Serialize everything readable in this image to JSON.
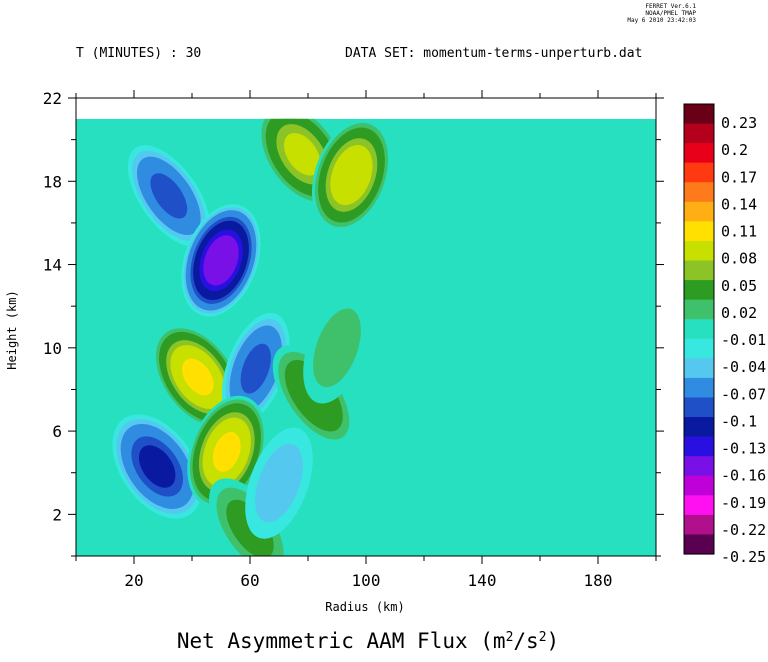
{
  "header": {
    "time_label": "T (MINUTES) : 30",
    "dataset_label": "DATA SET: momentum-terms-unperturb.dat",
    "stamp_line1": "FERRET  Ver.6.1",
    "stamp_line2": "NOAA/PMEL TMAP",
    "stamp_line3": "May  6 2010 23:42:03"
  },
  "chart_data": {
    "type": "heatmap",
    "title": "Net Asymmetric AAM Flux (m²/s²)",
    "xlabel": "Radius (km)",
    "ylabel": "Height (km)",
    "xlim": [
      0,
      200
    ],
    "ylim": [
      0,
      22
    ],
    "data_top": 21,
    "x_ticks": [
      20,
      60,
      100,
      140,
      180
    ],
    "y_ticks": [
      2,
      6,
      10,
      14,
      18,
      22
    ],
    "colorbar": {
      "levels": [
        "0.23",
        "0.2",
        "0.17",
        "0.14",
        "0.11",
        "0.08",
        "0.05",
        "0.02",
        "-0.01",
        "-0.04",
        "-0.07",
        "-0.1",
        "-0.13",
        "-0.16",
        "-0.19",
        "-0.22",
        "-0.25"
      ],
      "colors": [
        "#6a0018",
        "#b4001c",
        "#e8001a",
        "#ff3a10",
        "#ff7a1a",
        "#ffae14",
        "#ffe000",
        "#c8e000",
        "#8cc428",
        "#2e9c22",
        "#3fc06a",
        "#27e0c0",
        "#38e8e0",
        "#55c8f0",
        "#2f8ce0",
        "#1f50c8",
        "#0a1aa0",
        "#2a10e0",
        "#7a10e8",
        "#c000d8",
        "#ff10f0",
        "#b0108c",
        "#5a0050"
      ]
    },
    "background_value": -0.01,
    "features": [
      {
        "r": 32,
        "z": 17.3,
        "value": -0.09
      },
      {
        "r": 50,
        "z": 14.2,
        "value": -0.16
      },
      {
        "r": 42,
        "z": 8.6,
        "value": 0.12
      },
      {
        "r": 62,
        "z": 9.0,
        "value": -0.09
      },
      {
        "r": 28,
        "z": 4.3,
        "value": -0.1
      },
      {
        "r": 52,
        "z": 5.0,
        "value": 0.11
      },
      {
        "r": 78,
        "z": 19.3,
        "value": 0.09
      },
      {
        "r": 95,
        "z": 18.3,
        "value": 0.1
      },
      {
        "r": 82,
        "z": 7.7,
        "value": 0.05
      },
      {
        "r": 90,
        "z": 10.0,
        "value": 0.03
      },
      {
        "r": 60,
        "z": 1.3,
        "value": 0.04
      },
      {
        "r": 70,
        "z": 3.5,
        "value": -0.05
      }
    ]
  }
}
